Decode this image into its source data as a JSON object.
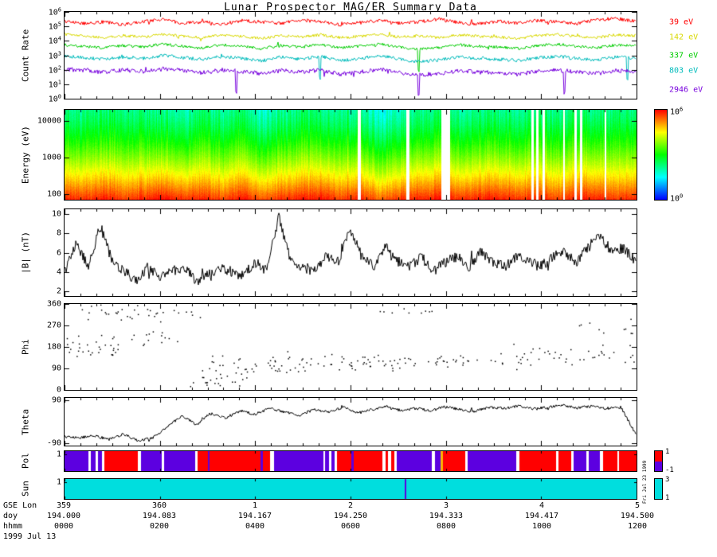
{
  "title": "Lunar Prospector MAG/ER Summary Data",
  "sidebar_note": "Fri Jul 23 1999",
  "footer": {
    "labels": [
      "GSE Lon",
      "doy",
      "hhmm"
    ],
    "date": "1999 Jul 13"
  },
  "x_axis": {
    "gse_lon": [
      "359",
      "360",
      "1",
      "2",
      "3",
      "4",
      "5"
    ],
    "doy": [
      "194.000",
      "194.083",
      "194.167",
      "194.250",
      "194.333",
      "194.417",
      "194.500"
    ],
    "hhmm": [
      "0000",
      "0200",
      "0400",
      "0600",
      "0800",
      "1000",
      "1200"
    ]
  },
  "chart_data": [
    {
      "id": "count_rate",
      "type": "line",
      "ylabel": "Count Rate",
      "yscale": "log",
      "ylim_log10": [
        0,
        6
      ],
      "yticks": [
        {
          "base": "10",
          "exp": "6",
          "f": 0.0
        },
        {
          "base": "10",
          "exp": "5",
          "f": 0.1667
        },
        {
          "base": "10",
          "exp": "4",
          "f": 0.3333
        },
        {
          "base": "10",
          "exp": "3",
          "f": 0.5
        },
        {
          "base": "10",
          "exp": "2",
          "f": 0.6667
        },
        {
          "base": "10",
          "exp": "1",
          "f": 0.8333
        },
        {
          "base": "10",
          "exp": "0",
          "f": 1.0
        }
      ],
      "legend_f": [
        0.13,
        0.3,
        0.5,
        0.68,
        0.89
      ],
      "series": [
        {
          "name": "39 eV",
          "color": "#ff0000",
          "jitter": 0.12,
          "drops": [],
          "log10_values": [
            5.35,
            5.2,
            5.3,
            5.1,
            5.35,
            5.5,
            5.2,
            5.3,
            5.15,
            5.4,
            5.3,
            5.2,
            5.45,
            5.3,
            5.1,
            5.25,
            5.4,
            5.2,
            5.3,
            5.5,
            5.25,
            5.15,
            5.35,
            5.2,
            5.4,
            5.3,
            5.2,
            5.45,
            5.55,
            5.35
          ]
        },
        {
          "name": "142 eV",
          "color": "#d8d800",
          "jitter": 0.1,
          "drops": [],
          "log10_values": [
            4.45,
            4.3,
            4.2,
            4.35,
            4.25,
            4.45,
            4.3,
            4.2,
            4.4,
            4.3,
            4.15,
            4.35,
            4.25,
            4.4,
            4.2,
            4.3,
            4.45,
            4.25,
            4.35,
            4.2,
            4.4,
            4.3,
            4.25,
            4.15,
            4.35,
            4.45,
            4.3,
            4.2,
            4.4,
            4.35
          ]
        },
        {
          "name": "337 eV",
          "color": "#00cc00",
          "jitter": 0.1,
          "drops": [
            0.62
          ],
          "log10_values": [
            3.7,
            3.6,
            3.5,
            3.65,
            3.55,
            3.75,
            3.6,
            3.5,
            3.7,
            3.6,
            3.45,
            3.65,
            3.55,
            3.7,
            3.5,
            3.6,
            3.75,
            3.55,
            3.4,
            3.5,
            3.7,
            3.6,
            3.55,
            3.45,
            3.65,
            3.75,
            3.6,
            3.5,
            3.7,
            3.65
          ]
        },
        {
          "name": "803 eV",
          "color": "#00bbbb",
          "jitter": 0.12,
          "drops": [
            0.447,
            0.985
          ],
          "log10_values": [
            2.9,
            2.8,
            2.7,
            2.85,
            2.75,
            2.95,
            2.8,
            2.7,
            2.9,
            2.75,
            2.6,
            2.85,
            2.7,
            2.9,
            2.6,
            2.75,
            2.95,
            2.7,
            2.5,
            2.65,
            2.85,
            2.75,
            2.7,
            2.6,
            2.8,
            2.9,
            2.75,
            2.65,
            2.85,
            2.8
          ]
        },
        {
          "name": "2946 eV",
          "color": "#7700dd",
          "jitter": 0.15,
          "drops": [
            0.3,
            0.62,
            0.875
          ],
          "log10_values": [
            2.0,
            1.9,
            1.8,
            1.95,
            1.85,
            2.05,
            1.9,
            1.75,
            1.95,
            1.85,
            1.7,
            1.9,
            1.8,
            1.95,
            1.65,
            1.8,
            2.0,
            1.75,
            1.6,
            1.7,
            1.9,
            1.8,
            1.75,
            1.65,
            1.85,
            1.95,
            1.8,
            1.7,
            1.9,
            1.85
          ]
        }
      ]
    },
    {
      "id": "energy_spectrogram",
      "type": "heatmap",
      "ylabel": "Energy (eV)",
      "yscale": "log",
      "ylim": [
        70,
        20000
      ],
      "yticks": [
        {
          "label": "10000",
          "f": 0.123
        },
        {
          "label": "1000",
          "f": 0.53
        },
        {
          "label": "100",
          "f": 0.937
        }
      ],
      "colorbar": {
        "ticks": [
          {
            "base": "10",
            "exp": "6",
            "f": 0.03
          },
          {
            "base": "10",
            "exp": "0",
            "f": 0.97
          }
        ]
      },
      "log10_flux_top": [
        2.4,
        2.3,
        2.5,
        2.2,
        2.4,
        2.3,
        2.1,
        2.4,
        2.2,
        2.5,
        1.8,
        2.2,
        2.4,
        2.3,
        2.1,
        2.3,
        1.6,
        2.0,
        2.3,
        2.4,
        2.2,
        2.3,
        2.4,
        2.2,
        2.4,
        2.3,
        2.5,
        2.3,
        2.4,
        2.3
      ],
      "log10_flux_bottom": [
        6.0,
        5.9,
        6.1,
        5.8,
        6.0,
        6.1,
        5.9,
        6.0,
        5.8,
        6.1,
        5.7,
        5.9,
        6.0,
        6.1,
        5.8,
        6.0,
        5.6,
        5.9,
        6.0,
        6.1,
        5.9,
        6.0,
        6.1,
        5.9,
        6.0,
        5.8,
        6.1,
        6.0,
        5.9,
        6.0
      ],
      "gaps": [
        [
          0.512,
          0.517
        ],
        [
          0.597,
          0.603
        ],
        [
          0.659,
          0.674
        ],
        [
          0.816,
          0.82
        ],
        [
          0.824,
          0.828
        ],
        [
          0.836,
          0.84
        ],
        [
          0.872,
          0.875
        ],
        [
          0.891,
          0.895
        ],
        [
          0.901,
          0.905
        ],
        [
          0.944,
          0.947
        ]
      ]
    },
    {
      "id": "b_magnitude",
      "type": "line",
      "ylabel": "|B| (nT)",
      "ylim": [
        1.5,
        10.5
      ],
      "yticks": [
        {
          "label": "10",
          "f": 0.0556
        },
        {
          "label": "8",
          "f": 0.2778
        },
        {
          "label": "6",
          "f": 0.5
        },
        {
          "label": "4",
          "f": 0.7222
        },
        {
          "label": "2",
          "f": 0.9444
        }
      ],
      "series": [
        {
          "name": "|B|",
          "color": "#000000",
          "jitter": 0.55,
          "drops": [],
          "values": [
            4.0,
            7.0,
            4.5,
            8.8,
            5.0,
            4.0,
            3.0,
            4.5,
            3.5,
            4.0,
            4.5,
            3.0,
            3.5,
            4.5,
            4.0,
            3.5,
            5.0,
            4.0,
            9.8,
            5.0,
            4.5,
            4.0,
            5.5,
            5.0,
            8.3,
            5.5,
            4.5,
            6.5,
            5.0,
            4.5,
            5.5,
            4.0,
            5.0,
            5.5,
            4.5,
            6.0,
            5.0,
            4.5,
            5.5,
            5.0,
            4.5,
            5.5,
            6.0,
            5.0,
            6.5,
            7.8,
            6.0,
            6.5,
            5.0
          ]
        }
      ]
    },
    {
      "id": "phi",
      "type": "scatter",
      "ylabel": "Phi",
      "ylim": [
        0,
        360
      ],
      "yticks": [
        {
          "label": "360",
          "f": 0.0
        },
        {
          "label": "270",
          "f": 0.25
        },
        {
          "label": "180",
          "f": 0.5
        },
        {
          "label": "90",
          "f": 0.75
        },
        {
          "label": "0",
          "f": 1.0
        }
      ],
      "bands": [
        {
          "x0": 0.0,
          "x1": 0.1,
          "mean": 175,
          "spread": 55,
          "n": 30
        },
        {
          "x0": 0.03,
          "x1": 0.24,
          "mean": 320,
          "spread": 38,
          "n": 34
        },
        {
          "x0": 0.08,
          "x1": 0.2,
          "mean": 215,
          "spread": 45,
          "n": 16
        },
        {
          "x0": 0.2,
          "x1": 0.32,
          "mean": 45,
          "spread": 35,
          "n": 22
        },
        {
          "x0": 0.24,
          "x1": 0.48,
          "mean": 105,
          "spread": 45,
          "n": 55
        },
        {
          "x0": 0.48,
          "x1": 0.72,
          "mean": 115,
          "spread": 35,
          "n": 60
        },
        {
          "x0": 0.55,
          "x1": 0.66,
          "mean": 330,
          "spread": 25,
          "n": 9
        },
        {
          "x0": 0.72,
          "x1": 1.0,
          "mean": 135,
          "spread": 50,
          "n": 48
        },
        {
          "x0": 0.9,
          "x1": 1.0,
          "mean": 250,
          "spread": 60,
          "n": 10
        }
      ]
    },
    {
      "id": "theta",
      "type": "line",
      "ylabel": "Theta",
      "ylim": [
        -100,
        100
      ],
      "yticks": [
        {
          "label": "90",
          "f": 0.05
        },
        {
          "label": "-90",
          "f": 0.95
        }
      ],
      "series": [
        {
          "name": "Theta",
          "color": "#000000",
          "jitter": 6,
          "drops": [],
          "values": [
            -65,
            -70,
            -60,
            -78,
            -55,
            -82,
            -70,
            -25,
            25,
            -15,
            35,
            15,
            45,
            30,
            55,
            40,
            25,
            50,
            38,
            60,
            35,
            50,
            62,
            45,
            55,
            45,
            62,
            50,
            42,
            60,
            55,
            65,
            52,
            60,
            68,
            58,
            64,
            55,
            60,
            -55
          ]
        }
      ]
    },
    {
      "id": "polarity",
      "type": "strip",
      "ylabel": "Pol",
      "yticks": [
        {
          "label": "1",
          "f": 0.15
        }
      ],
      "value_colors": {
        "1": "#ff0000",
        "-1": "#5c00e0",
        "0": "#ffffff",
        "2": "#ffb400"
      },
      "segments": [
        [
          0.0,
          0.042,
          -1
        ],
        [
          0.042,
          0.046,
          0
        ],
        [
          0.046,
          0.055,
          -1
        ],
        [
          0.055,
          0.059,
          0
        ],
        [
          0.059,
          0.066,
          -1
        ],
        [
          0.066,
          0.07,
          0
        ],
        [
          0.07,
          0.128,
          1
        ],
        [
          0.128,
          0.134,
          0
        ],
        [
          0.134,
          0.17,
          -1
        ],
        [
          0.17,
          0.174,
          0
        ],
        [
          0.174,
          0.228,
          -1
        ],
        [
          0.228,
          0.233,
          0
        ],
        [
          0.233,
          0.25,
          1
        ],
        [
          0.25,
          0.254,
          -1
        ],
        [
          0.254,
          0.342,
          1
        ],
        [
          0.342,
          0.347,
          -1
        ],
        [
          0.347,
          0.36,
          1
        ],
        [
          0.36,
          0.366,
          0
        ],
        [
          0.366,
          0.452,
          -1
        ],
        [
          0.452,
          0.456,
          0
        ],
        [
          0.456,
          0.462,
          -1
        ],
        [
          0.462,
          0.466,
          0
        ],
        [
          0.466,
          0.472,
          -1
        ],
        [
          0.472,
          0.477,
          0
        ],
        [
          0.477,
          0.502,
          1
        ],
        [
          0.502,
          0.506,
          -1
        ],
        [
          0.506,
          0.556,
          1
        ],
        [
          0.556,
          0.561,
          0
        ],
        [
          0.561,
          0.566,
          1
        ],
        [
          0.566,
          0.571,
          0
        ],
        [
          0.571,
          0.576,
          1
        ],
        [
          0.576,
          0.581,
          0
        ],
        [
          0.581,
          0.642,
          -1
        ],
        [
          0.642,
          0.647,
          0
        ],
        [
          0.647,
          0.657,
          -1
        ],
        [
          0.657,
          0.661,
          2
        ],
        [
          0.661,
          0.7,
          1
        ],
        [
          0.7,
          0.705,
          0
        ],
        [
          0.705,
          0.79,
          -1
        ],
        [
          0.79,
          0.795,
          0
        ],
        [
          0.795,
          0.86,
          1
        ],
        [
          0.86,
          0.864,
          0
        ],
        [
          0.864,
          0.886,
          1
        ],
        [
          0.886,
          0.89,
          0
        ],
        [
          0.89,
          0.912,
          -1
        ],
        [
          0.912,
          0.916,
          0
        ],
        [
          0.916,
          0.936,
          -1
        ],
        [
          0.936,
          0.941,
          0
        ],
        [
          0.941,
          0.966,
          1
        ],
        [
          0.966,
          0.97,
          0
        ],
        [
          0.97,
          1.0,
          1
        ]
      ],
      "colorbar": {
        "top_color": "#ff0000",
        "bottom_color": "#5c00e0",
        "ticks": [
          {
            "label": "1",
            "f": 0.08
          },
          {
            "label": "-1",
            "f": 0.92
          }
        ]
      }
    },
    {
      "id": "sun",
      "type": "strip",
      "ylabel": "Sun",
      "yticks": [
        {
          "label": "1",
          "f": 0.15
        }
      ],
      "base_color": "#00dede",
      "lines": [
        {
          "x": 0.595,
          "color": "#5c00e0"
        }
      ],
      "colorbar": {
        "color": "#00dede",
        "ticks": [
          {
            "label": "3",
            "f": 0.08
          },
          {
            "label": "1",
            "f": 0.92
          }
        ]
      }
    }
  ]
}
